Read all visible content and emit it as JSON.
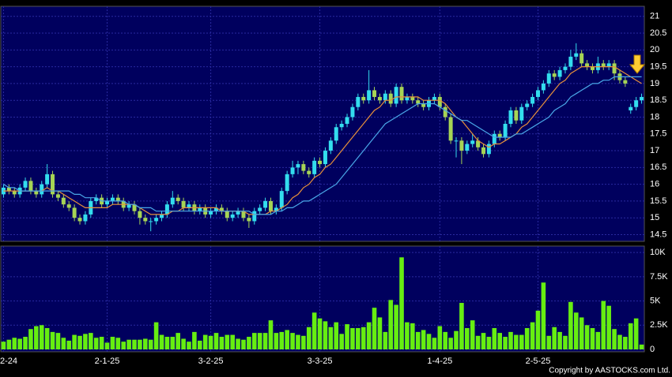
{
  "chart_data": [
    {
      "type": "candlestick",
      "xlim": [
        -0.5,
        117.5
      ],
      "ylim": [
        14.3,
        21.3
      ],
      "yticks": [
        14.5,
        15,
        15.5,
        16,
        16.5,
        17,
        17.5,
        18,
        18.5,
        19,
        19.5,
        20,
        20.5,
        21
      ],
      "grid": true,
      "up_color": "#33ddee",
      "down_color": "#a6d455",
      "open": [
        15.7,
        15.9,
        15.8,
        15.7,
        15.9,
        16.1,
        15.8,
        15.7,
        16.0,
        16.3,
        15.7,
        15.6,
        15.4,
        15.3,
        15.0,
        14.9,
        15.1,
        15.5,
        15.6,
        15.4,
        15.5,
        15.6,
        15.5,
        15.3,
        15.4,
        15.2,
        15.0,
        14.9,
        14.9,
        15.0,
        15.1,
        15.4,
        15.6,
        15.5,
        15.3,
        15.4,
        15.2,
        15.3,
        15.1,
        15.2,
        15.3,
        15.2,
        15.0,
        15.1,
        15.2,
        15.0,
        14.9,
        15.2,
        15.3,
        15.5,
        15.2,
        15.3,
        15.8,
        16.3,
        16.5,
        16.6,
        16.4,
        16.3,
        16.7,
        16.6,
        17.0,
        17.3,
        17.7,
        17.8,
        18.0,
        18.3,
        18.6,
        18.5,
        18.8,
        18.6,
        18.5,
        18.7,
        18.4,
        18.9,
        18.5,
        18.6,
        18.5,
        18.4,
        18.3,
        18.5,
        18.6,
        18.3,
        18.0,
        17.3,
        17.3,
        17.0,
        17.2,
        17.3,
        17.1,
        16.9,
        17.2,
        17.5,
        17.4,
        17.8,
        18.2,
        17.9,
        18.3,
        18.4,
        18.6,
        18.8,
        19.0,
        19.3,
        19.2,
        19.4,
        19.5,
        19.8,
        19.9,
        19.6,
        19.5,
        19.4,
        19.6,
        19.5,
        19.6,
        19.3,
        19.1,
        18.2,
        18.3,
        18.5
      ],
      "high": [
        16.0,
        16.0,
        15.9,
        16.0,
        16.2,
        16.2,
        15.9,
        16.1,
        16.6,
        16.4,
        15.8,
        15.7,
        15.5,
        15.4,
        15.1,
        15.2,
        15.6,
        15.7,
        15.7,
        15.6,
        15.7,
        15.7,
        15.6,
        15.5,
        15.5,
        15.3,
        15.1,
        15.0,
        15.1,
        15.2,
        15.5,
        15.8,
        15.7,
        15.6,
        15.5,
        15.5,
        15.4,
        15.4,
        15.3,
        15.4,
        15.4,
        15.3,
        15.2,
        15.3,
        15.3,
        15.1,
        15.3,
        15.4,
        15.6,
        15.6,
        15.4,
        15.9,
        16.4,
        16.7,
        16.7,
        16.7,
        16.5,
        16.8,
        16.8,
        17.1,
        17.4,
        17.8,
        17.9,
        18.1,
        18.4,
        18.7,
        18.7,
        19.4,
        18.9,
        18.7,
        18.8,
        18.8,
        19.0,
        19.0,
        18.7,
        18.7,
        18.6,
        18.5,
        18.6,
        18.7,
        18.7,
        18.4,
        18.1,
        17.4,
        17.4,
        17.3,
        17.5,
        17.4,
        17.2,
        17.3,
        17.6,
        17.6,
        17.9,
        18.3,
        18.3,
        18.4,
        18.5,
        18.7,
        18.9,
        19.1,
        19.4,
        19.4,
        19.5,
        19.6,
        20.0,
        20.2,
        20.0,
        19.7,
        19.6,
        19.8,
        19.7,
        19.7,
        19.7,
        19.4,
        19.2,
        18.4,
        18.6,
        18.7
      ],
      "low": [
        15.6,
        15.7,
        15.6,
        15.6,
        15.8,
        15.7,
        15.6,
        15.6,
        15.9,
        15.6,
        15.5,
        15.3,
        15.2,
        14.9,
        14.8,
        14.8,
        15.0,
        15.4,
        15.3,
        15.3,
        15.4,
        15.4,
        15.2,
        15.2,
        15.1,
        14.8,
        14.8,
        14.6,
        14.8,
        14.9,
        15.0,
        15.3,
        15.4,
        15.2,
        15.2,
        15.1,
        15.1,
        15.0,
        15.0,
        15.1,
        15.1,
        14.9,
        14.9,
        15.0,
        14.9,
        14.7,
        14.8,
        15.1,
        15.2,
        15.1,
        15.1,
        15.2,
        15.7,
        16.2,
        16.3,
        16.3,
        16.2,
        16.2,
        16.5,
        16.5,
        16.9,
        17.2,
        17.6,
        17.7,
        17.9,
        18.2,
        18.4,
        18.4,
        18.5,
        18.4,
        18.4,
        18.3,
        18.3,
        18.4,
        18.4,
        18.4,
        18.3,
        18.2,
        18.2,
        18.4,
        18.2,
        17.9,
        17.2,
        16.8,
        16.6,
        16.9,
        17.1,
        17.0,
        16.8,
        16.8,
        17.1,
        17.3,
        17.3,
        17.7,
        17.8,
        17.8,
        18.2,
        18.3,
        18.5,
        18.7,
        18.9,
        19.1,
        19.1,
        19.3,
        19.4,
        19.7,
        19.5,
        19.4,
        19.3,
        19.3,
        19.4,
        19.4,
        19.1,
        19.0,
        18.9,
        18.1,
        18.2,
        18.4
      ],
      "close": [
        15.9,
        15.8,
        15.7,
        15.9,
        16.1,
        15.8,
        15.7,
        16.0,
        16.3,
        15.7,
        15.6,
        15.4,
        15.3,
        15.0,
        14.9,
        15.1,
        15.5,
        15.6,
        15.4,
        15.5,
        15.6,
        15.5,
        15.3,
        15.4,
        15.2,
        15.0,
        14.9,
        14.9,
        15.0,
        15.1,
        15.4,
        15.6,
        15.5,
        15.3,
        15.4,
        15.2,
        15.3,
        15.1,
        15.2,
        15.3,
        15.2,
        15.0,
        15.1,
        15.2,
        15.0,
        14.9,
        15.2,
        15.3,
        15.5,
        15.2,
        15.3,
        15.8,
        16.3,
        16.5,
        16.6,
        16.4,
        16.3,
        16.7,
        16.6,
        17.0,
        17.3,
        17.7,
        17.8,
        18.0,
        18.3,
        18.6,
        18.5,
        18.8,
        18.6,
        18.5,
        18.7,
        18.4,
        18.9,
        18.5,
        18.6,
        18.5,
        18.4,
        18.3,
        18.5,
        18.6,
        18.3,
        18.0,
        17.3,
        17.3,
        17.0,
        17.2,
        17.3,
        17.1,
        16.9,
        17.2,
        17.5,
        17.4,
        17.8,
        18.2,
        17.9,
        18.3,
        18.4,
        18.6,
        18.8,
        19.0,
        19.3,
        19.2,
        19.4,
        19.5,
        19.8,
        19.9,
        19.6,
        19.5,
        19.4,
        19.6,
        19.5,
        19.6,
        19.3,
        19.1,
        19.0,
        18.3,
        18.5,
        18.6
      ],
      "series": [
        {
          "color": "#e8913a",
          "values": [
            15.8,
            15.8,
            15.8,
            15.8,
            15.8,
            15.8,
            15.8,
            15.8,
            15.9,
            15.8,
            15.8,
            15.7,
            15.6,
            15.5,
            15.4,
            15.3,
            15.3,
            15.3,
            15.3,
            15.3,
            15.4,
            15.4,
            15.4,
            15.4,
            15.4,
            15.3,
            15.2,
            15.1,
            15.1,
            15.1,
            15.1,
            15.2,
            15.2,
            15.3,
            15.3,
            15.3,
            15.3,
            15.3,
            15.3,
            15.3,
            15.2,
            15.2,
            15.2,
            15.2,
            15.2,
            15.1,
            15.1,
            15.1,
            15.1,
            15.2,
            15.2,
            15.3,
            15.4,
            15.6,
            15.7,
            15.9,
            16.0,
            16.2,
            16.3,
            16.5,
            16.6,
            16.8,
            17.0,
            17.2,
            17.4,
            17.6,
            17.8,
            18.0,
            18.2,
            18.3,
            18.5,
            18.5,
            18.6,
            18.6,
            18.6,
            18.6,
            18.6,
            18.5,
            18.5,
            18.5,
            18.5,
            18.4,
            18.2,
            18.0,
            17.9,
            17.7,
            17.5,
            17.3,
            17.2,
            17.1,
            17.2,
            17.2,
            17.3,
            17.4,
            17.5,
            17.7,
            17.8,
            18.0,
            18.2,
            18.4,
            18.6,
            18.8,
            19.0,
            19.1,
            19.3,
            19.4,
            19.5,
            19.5,
            19.5,
            19.5,
            19.5,
            19.5,
            19.5,
            19.4,
            19.3,
            19.2,
            19.1,
            19.0
          ]
        },
        {
          "color": "#4aa8e8",
          "values": [
            16.0,
            15.9,
            15.9,
            15.8,
            15.8,
            15.8,
            15.8,
            15.8,
            15.8,
            15.8,
            15.8,
            15.8,
            15.8,
            15.7,
            15.7,
            15.6,
            15.6,
            15.6,
            15.5,
            15.5,
            15.5,
            15.5,
            15.5,
            15.4,
            15.4,
            15.3,
            15.3,
            15.3,
            15.2,
            15.2,
            15.2,
            15.2,
            15.2,
            15.2,
            15.2,
            15.2,
            15.2,
            15.2,
            15.2,
            15.2,
            15.2,
            15.2,
            15.2,
            15.2,
            15.2,
            15.2,
            15.1,
            15.1,
            15.1,
            15.1,
            15.2,
            15.2,
            15.3,
            15.3,
            15.4,
            15.5,
            15.5,
            15.6,
            15.7,
            15.8,
            15.9,
            16.0,
            16.2,
            16.4,
            16.6,
            16.8,
            17.0,
            17.2,
            17.4,
            17.6,
            17.8,
            17.9,
            18.0,
            18.1,
            18.2,
            18.3,
            18.4,
            18.4,
            18.4,
            18.4,
            18.3,
            18.2,
            18.1,
            18.0,
            17.9,
            17.9,
            17.8,
            17.7,
            17.6,
            17.5,
            17.4,
            17.4,
            17.4,
            17.4,
            17.5,
            17.5,
            17.6,
            17.7,
            17.8,
            17.9,
            18.0,
            18.2,
            18.3,
            18.4,
            18.6,
            18.7,
            18.8,
            18.9,
            19.0,
            19.0,
            19.1,
            19.1,
            19.2,
            19.2,
            19.2,
            19.2,
            19.2,
            19.2
          ]
        }
      ]
    },
    {
      "type": "bar",
      "xlim": [
        -0.5,
        117.5
      ],
      "ylim": [
        0,
        10500
      ],
      "yticks": [
        0,
        {
          "value": 2500,
          "label": "2.5K"
        },
        {
          "value": 5000,
          "label": "5K"
        },
        {
          "value": 7500,
          "label": "7.5K"
        },
        {
          "value": 10000,
          "label": "10K"
        }
      ],
      "xticks": [
        {
          "value": 0,
          "label": "2-24"
        },
        {
          "value": 19,
          "label": "2-1-25"
        },
        {
          "value": 38,
          "label": "3-2-25"
        },
        {
          "value": 58,
          "label": "3-3-25"
        },
        {
          "value": 80,
          "label": "1-4-25"
        },
        {
          "value": 98,
          "label": "2-5-25"
        }
      ],
      "grid": true,
      "color": "#66ee11",
      "values": [
        800,
        1000,
        1200,
        1100,
        1300,
        2100,
        2400,
        2500,
        2200,
        1800,
        1700,
        1200,
        900,
        1500,
        1400,
        1600,
        1700,
        1200,
        1300,
        700,
        1300,
        1200,
        800,
        1000,
        1000,
        1000,
        1100,
        1000,
        2800,
        1500,
        1300,
        1300,
        1700,
        1100,
        800,
        1800,
        900,
        1500,
        1400,
        1700,
        1300,
        1500,
        1500,
        1100,
        1000,
        1300,
        1700,
        1700,
        1700,
        3000,
        1700,
        1800,
        2000,
        1700,
        1500,
        1400,
        2300,
        3800,
        3200,
        2900,
        2300,
        2800,
        1600,
        2600,
        2200,
        2200,
        2300,
        2800,
        4300,
        3300,
        1800,
        5100,
        4600,
        9500,
        2800,
        2700,
        1800,
        2000,
        1600,
        1200,
        2400,
        1800,
        1200,
        1900,
        4800,
        2200,
        3000,
        1400,
        1700,
        1300,
        2200,
        1700,
        1300,
        1800,
        1500,
        1500,
        2200,
        2800,
        4000,
        6900,
        1400,
        2300,
        1800,
        1400,
        4900,
        3800,
        3300,
        2500,
        2200,
        1800,
        5000,
        4500,
        2100,
        1500,
        1300,
        2700,
        3200,
        500
      ],
      "source": "Copyright by AASTOCKS.com Ltd."
    }
  ]
}
